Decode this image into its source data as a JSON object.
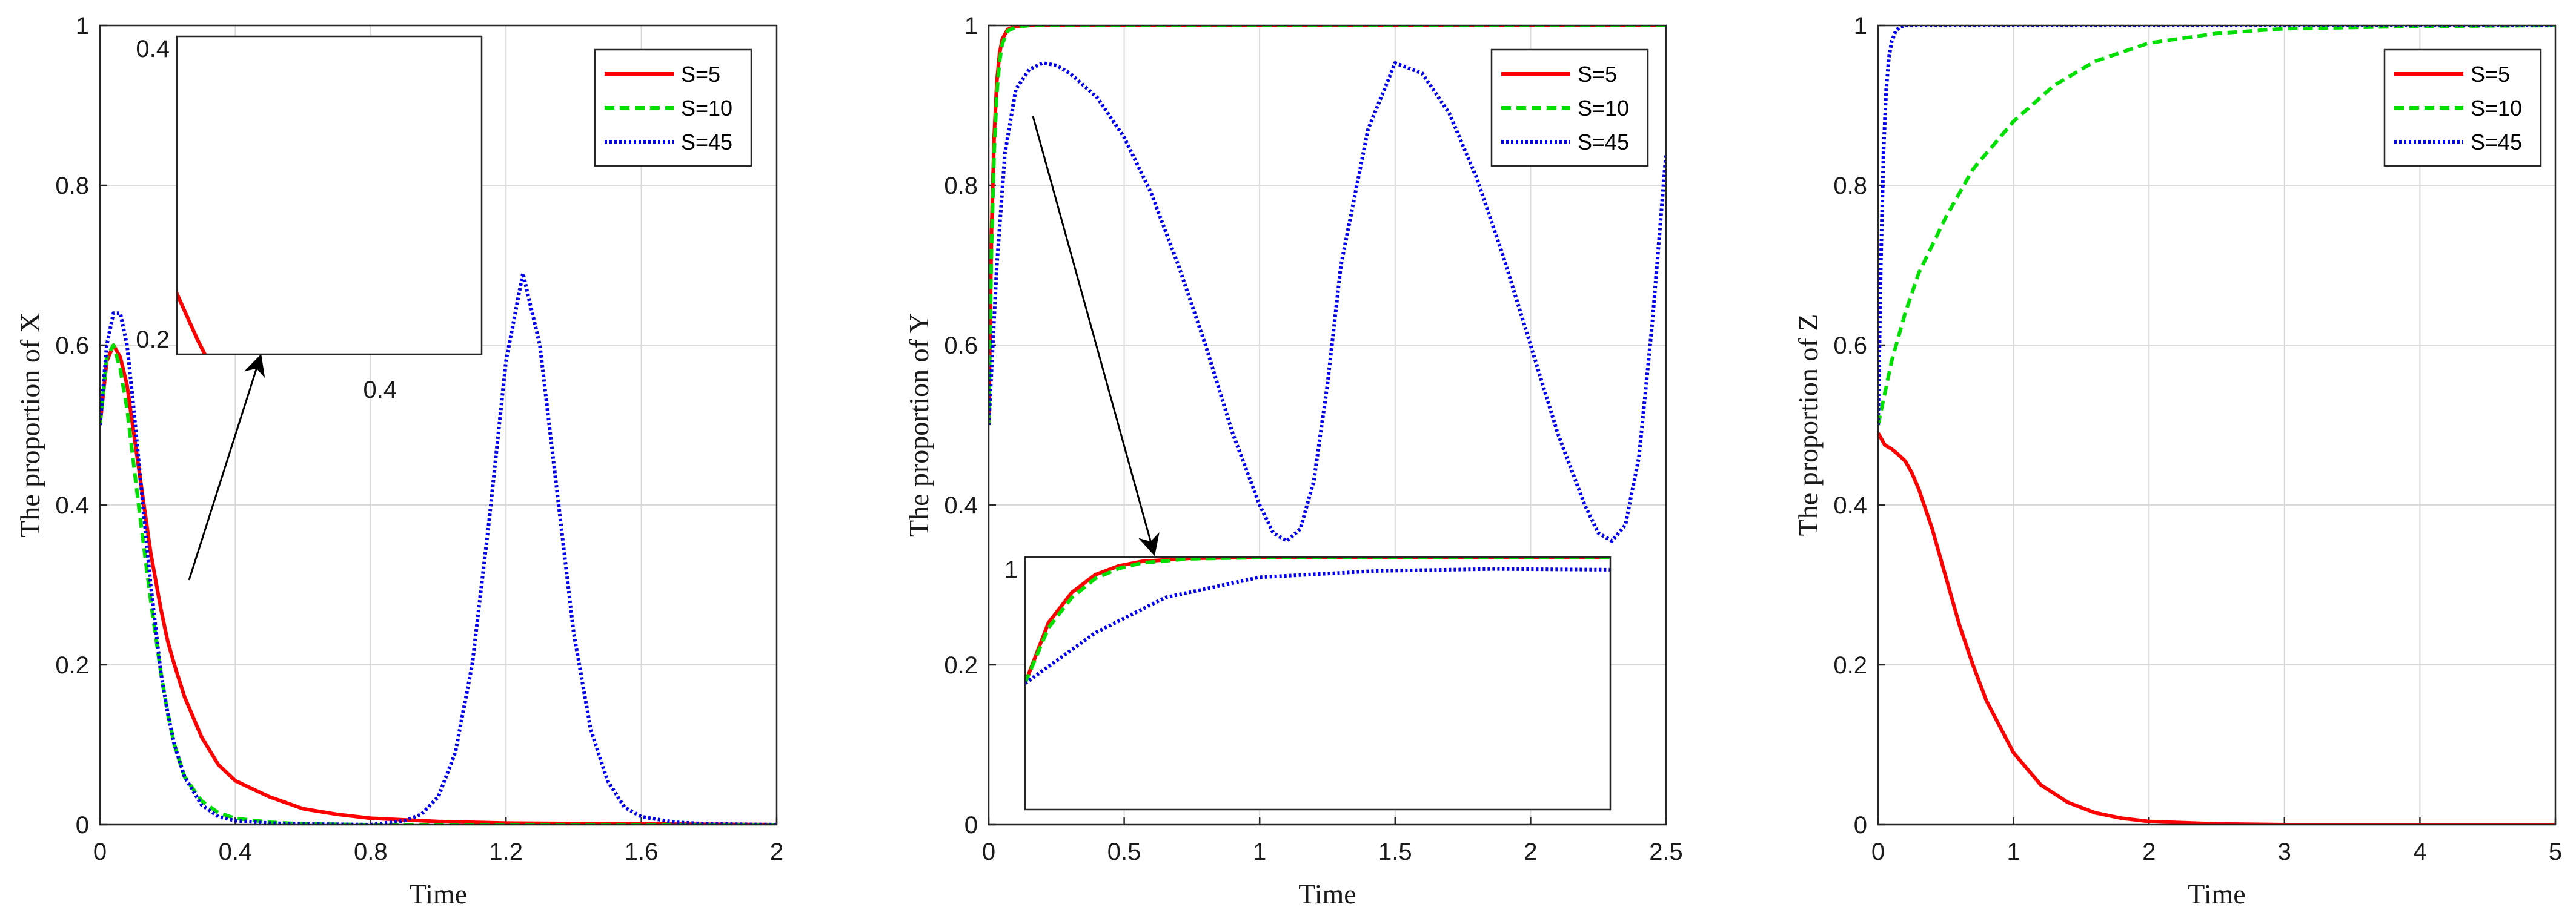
{
  "chart_data": [
    {
      "type": "line",
      "xlabel": "Time",
      "ylabel": "The proportion of X",
      "xlim": [
        0,
        2
      ],
      "ylim": [
        0,
        1
      ],
      "xticks": [
        "0",
        "0.4",
        "0.8",
        "1.2",
        "1.6",
        "2"
      ],
      "yticks": [
        "0",
        "0.2",
        "0.4",
        "0.6",
        "0.8",
        "1"
      ],
      "grid": true,
      "legend_position": "top-right",
      "series": [
        {
          "name": "S=5",
          "color": "#ff0000",
          "style": "solid",
          "x": [
            0,
            0.02,
            0.04,
            0.06,
            0.08,
            0.1,
            0.12,
            0.15,
            0.18,
            0.2,
            0.22,
            0.25,
            0.3,
            0.35,
            0.4,
            0.5,
            0.6,
            0.7,
            0.8,
            1.0,
            1.2,
            1.6,
            2.0
          ],
          "y": [
            0.5,
            0.58,
            0.6,
            0.585,
            0.55,
            0.49,
            0.43,
            0.34,
            0.27,
            0.23,
            0.2,
            0.16,
            0.11,
            0.075,
            0.055,
            0.035,
            0.02,
            0.013,
            0.008,
            0.004,
            0.002,
            0.001,
            0.0
          ]
        },
        {
          "name": "S=10",
          "color": "#00e000",
          "style": "dashed",
          "x": [
            0,
            0.02,
            0.04,
            0.06,
            0.08,
            0.1,
            0.12,
            0.15,
            0.18,
            0.2,
            0.22,
            0.25,
            0.3,
            0.35,
            0.4,
            0.5,
            0.6,
            0.8,
            1.0,
            2.0
          ],
          "y": [
            0.5,
            0.585,
            0.6,
            0.57,
            0.52,
            0.45,
            0.38,
            0.28,
            0.19,
            0.14,
            0.1,
            0.06,
            0.03,
            0.015,
            0.008,
            0.003,
            0.001,
            0.0,
            0.0,
            0.0
          ]
        },
        {
          "name": "S=45",
          "color": "#0000ee",
          "style": "dotted",
          "x": [
            0,
            0.02,
            0.04,
            0.06,
            0.08,
            0.1,
            0.12,
            0.15,
            0.18,
            0.2,
            0.22,
            0.25,
            0.3,
            0.35,
            0.4,
            0.5,
            0.6,
            0.8,
            0.9,
            0.95,
            1.0,
            1.05,
            1.1,
            1.15,
            1.2,
            1.25,
            1.3,
            1.35,
            1.4,
            1.45,
            1.5,
            1.55,
            1.6,
            1.7,
            1.8,
            2.0
          ],
          "y": [
            0.5,
            0.6,
            0.64,
            0.64,
            0.6,
            0.52,
            0.43,
            0.3,
            0.19,
            0.14,
            0.1,
            0.06,
            0.025,
            0.01,
            0.005,
            0.002,
            0.001,
            0.0,
            0.005,
            0.013,
            0.035,
            0.09,
            0.2,
            0.38,
            0.58,
            0.69,
            0.6,
            0.42,
            0.24,
            0.12,
            0.055,
            0.022,
            0.01,
            0.003,
            0.001,
            0.0
          ]
        }
      ],
      "inset": {
        "xlim": [
          0.2,
          0.5
        ],
        "ylim": [
          0.19,
          0.4
        ],
        "xticks": [
          "0.4"
        ],
        "yticks": [
          "0.2",
          "0.4"
        ]
      }
    },
    {
      "type": "line",
      "xlabel": "Time",
      "ylabel": "The  proportion of Y",
      "xlim": [
        0,
        2.5
      ],
      "ylim": [
        0,
        1
      ],
      "xticks": [
        "0",
        "0.5",
        "1",
        "1.5",
        "2",
        "2.5"
      ],
      "yticks": [
        "0",
        "0.2",
        "0.4",
        "0.6",
        "0.8",
        "1"
      ],
      "grid": true,
      "legend_position": "top-right",
      "series": [
        {
          "name": "S=5",
          "color": "#ff0000",
          "style": "solid",
          "x": [
            0,
            0.01,
            0.02,
            0.03,
            0.04,
            0.05,
            0.07,
            0.1,
            0.15,
            0.2,
            0.3,
            0.5,
            1.0,
            2.5
          ],
          "y": [
            0.5,
            0.74,
            0.86,
            0.93,
            0.965,
            0.983,
            0.995,
            0.999,
            1.0,
            1.0,
            1.0,
            1.0,
            1.0,
            1.0
          ]
        },
        {
          "name": "S=10",
          "color": "#00e000",
          "style": "dashed",
          "x": [
            0,
            0.01,
            0.02,
            0.03,
            0.04,
            0.05,
            0.07,
            0.1,
            0.15,
            0.2,
            0.3,
            0.5,
            1.0,
            2.5
          ],
          "y": [
            0.5,
            0.72,
            0.84,
            0.915,
            0.955,
            0.977,
            0.993,
            0.998,
            1.0,
            1.0,
            1.0,
            1.0,
            1.0,
            1.0
          ]
        },
        {
          "name": "S=45",
          "color": "#0000ee",
          "style": "dotted",
          "x": [
            0,
            0.03,
            0.06,
            0.1,
            0.15,
            0.2,
            0.25,
            0.3,
            0.4,
            0.5,
            0.6,
            0.7,
            0.8,
            0.9,
            1.0,
            1.05,
            1.1,
            1.15,
            1.2,
            1.25,
            1.3,
            1.4,
            1.5,
            1.6,
            1.7,
            1.8,
            1.9,
            2.0,
            2.1,
            2.2,
            2.25,
            2.3,
            2.35,
            2.4,
            2.45,
            2.5
          ],
          "y": [
            0.5,
            0.7,
            0.84,
            0.92,
            0.945,
            0.953,
            0.95,
            0.94,
            0.91,
            0.86,
            0.79,
            0.7,
            0.6,
            0.49,
            0.4,
            0.365,
            0.355,
            0.37,
            0.43,
            0.55,
            0.7,
            0.87,
            0.953,
            0.94,
            0.89,
            0.81,
            0.71,
            0.6,
            0.49,
            0.4,
            0.365,
            0.355,
            0.375,
            0.46,
            0.63,
            0.84
          ]
        }
      ],
      "inset": {
        "xlim": [
          0.0,
          0.25
        ],
        "ylim": [
          0.0,
          1.0
        ],
        "xticks": [],
        "yticks": [
          "1"
        ]
      }
    },
    {
      "type": "line",
      "xlabel": "Time",
      "ylabel": "The  proportion of Z",
      "xlim": [
        0,
        5
      ],
      "ylim": [
        0,
        1
      ],
      "xticks": [
        "0",
        "1",
        "2",
        "3",
        "4",
        "5"
      ],
      "yticks": [
        "0",
        "0.2",
        "0.4",
        "0.6",
        "0.8",
        "1"
      ],
      "grid": true,
      "legend_position": "top-right",
      "series": [
        {
          "name": "S=5",
          "color": "#ff0000",
          "style": "solid",
          "x": [
            0,
            0.05,
            0.1,
            0.15,
            0.2,
            0.25,
            0.3,
            0.4,
            0.5,
            0.6,
            0.7,
            0.8,
            1.0,
            1.2,
            1.4,
            1.6,
            1.8,
            2.0,
            2.5,
            3.0,
            4.0,
            5.0
          ],
          "y": [
            0.49,
            0.475,
            0.47,
            0.463,
            0.455,
            0.44,
            0.42,
            0.37,
            0.31,
            0.25,
            0.2,
            0.155,
            0.09,
            0.05,
            0.028,
            0.015,
            0.008,
            0.004,
            0.001,
            0.0,
            0.0,
            0.0
          ]
        },
        {
          "name": "S=10",
          "color": "#00e000",
          "style": "dashed",
          "x": [
            0,
            0.05,
            0.1,
            0.2,
            0.3,
            0.5,
            0.7,
            1.0,
            1.3,
            1.6,
            2.0,
            2.5,
            3.0,
            4.0,
            5.0
          ],
          "y": [
            0.5,
            0.54,
            0.58,
            0.64,
            0.69,
            0.76,
            0.82,
            0.88,
            0.925,
            0.955,
            0.978,
            0.99,
            0.996,
            0.999,
            1.0
          ]
        },
        {
          "name": "S=45",
          "color": "#0000ee",
          "style": "dotted",
          "x": [
            0,
            0.02,
            0.04,
            0.06,
            0.08,
            0.1,
            0.13,
            0.16,
            0.2,
            0.3,
            1.0,
            5.0
          ],
          "y": [
            0.5,
            0.7,
            0.84,
            0.92,
            0.96,
            0.98,
            0.993,
            0.998,
            1.0,
            1.0,
            1.0,
            1.0
          ]
        }
      ]
    }
  ]
}
